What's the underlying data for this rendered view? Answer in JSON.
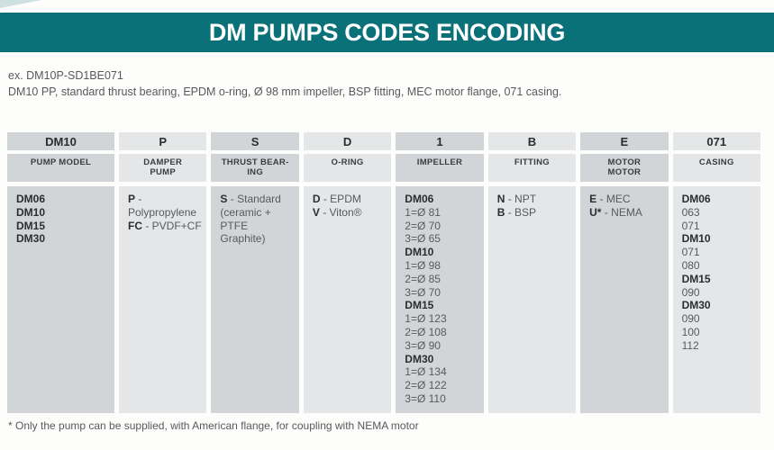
{
  "page": {
    "title": "DM PUMPS CODES ENCODING",
    "example_code": "ex. DM10P-SD1BE071",
    "example_description": "DM10 PP, standard thrust bearing, EPDM o-ring, Ø 98 mm impeller, BSP fitting, MEC motor flange, 071 casing.",
    "footnote": "* Only the pump can be supplied, with American flange, for coupling with NEMA motor"
  },
  "colors": {
    "banner_teal": "#0b7179",
    "column_dark": "#d2d5d7",
    "column_light": "#e4e6e7",
    "text_gray": "#58595b"
  },
  "table": {
    "columns": [
      {
        "code": "DM10",
        "label": "PUMP MODEL",
        "shade": "dark",
        "lines": [
          [
            {
              "text": "DM06",
              "bold": true
            }
          ],
          [
            {
              "text": "DM10",
              "bold": true
            }
          ],
          [
            {
              "text": "DM15",
              "bold": true
            }
          ],
          [
            {
              "text": "DM30",
              "bold": true
            }
          ]
        ]
      },
      {
        "code": "P",
        "label": "DAMPER\nPUMP",
        "shade": "light",
        "lines": [
          [
            {
              "text": "P",
              "bold": true
            },
            {
              "text": " - Polypropylene"
            }
          ],
          [
            {
              "text": "FC",
              "bold": true
            },
            {
              "text": " - PVDF+CF"
            }
          ]
        ]
      },
      {
        "code": "S",
        "label": "THRUST BEAR-\nING",
        "shade": "dark",
        "lines": [
          [
            {
              "text": "S",
              "bold": true
            },
            {
              "text": " - Standard"
            }
          ],
          [
            {
              "text": "(ceramic +"
            }
          ],
          [
            {
              "text": "PTFE Graphite)"
            }
          ]
        ]
      },
      {
        "code": "D",
        "label": "O-RING",
        "shade": "light",
        "lines": [
          [
            {
              "text": "D",
              "bold": true
            },
            {
              "text": " - EPDM"
            }
          ],
          [
            {
              "text": "V",
              "bold": true
            },
            {
              "text": " - Viton®"
            }
          ]
        ]
      },
      {
        "code": "1",
        "label": "IMPELLER",
        "shade": "dark",
        "lines": [
          [
            {
              "text": "DM06",
              "bold": true
            }
          ],
          [
            {
              "text": "1=Ø 81"
            }
          ],
          [
            {
              "text": "2=Ø 70"
            }
          ],
          [
            {
              "text": "3=Ø 65"
            }
          ],
          [
            {
              "text": "DM10",
              "bold": true
            }
          ],
          [
            {
              "text": "1=Ø 98"
            }
          ],
          [
            {
              "text": "2=Ø 85"
            }
          ],
          [
            {
              "text": "3=Ø 70"
            }
          ],
          [
            {
              "text": "DM15",
              "bold": true
            }
          ],
          [
            {
              "text": "1=Ø 123"
            }
          ],
          [
            {
              "text": "2=Ø 108"
            }
          ],
          [
            {
              "text": "3=Ø 90"
            }
          ],
          [
            {
              "text": "DM30",
              "bold": true
            }
          ],
          [
            {
              "text": "1=Ø 134"
            }
          ],
          [
            {
              "text": "2=Ø 122"
            }
          ],
          [
            {
              "text": "3=Ø 110"
            }
          ]
        ]
      },
      {
        "code": "B",
        "label": "FITTING",
        "shade": "light",
        "lines": [
          [
            {
              "text": "N",
              "bold": true
            },
            {
              "text": " - NPT"
            }
          ],
          [
            {
              "text": "B",
              "bold": true
            },
            {
              "text": " - BSP"
            }
          ]
        ]
      },
      {
        "code": "E",
        "label": "MOTOR\nMOTOR",
        "shade": "dark",
        "lines": [
          [
            {
              "text": "E",
              "bold": true
            },
            {
              "text": " - MEC"
            }
          ],
          [
            {
              "text": "U*",
              "bold": true
            },
            {
              "text": " - NEMA"
            }
          ]
        ]
      },
      {
        "code": "071",
        "label": "CASING",
        "shade": "light",
        "lines": [
          [
            {
              "text": "DM06",
              "bold": true
            }
          ],
          [
            {
              "text": "063"
            }
          ],
          [
            {
              "text": "071"
            }
          ],
          [
            {
              "text": "DM10",
              "bold": true
            }
          ],
          [
            {
              "text": "071"
            }
          ],
          [
            {
              "text": "080"
            }
          ],
          [
            {
              "text": "DM15",
              "bold": true
            }
          ],
          [
            {
              "text": "090"
            }
          ],
          [
            {
              "text": "DM30",
              "bold": true
            }
          ],
          [
            {
              "text": "090"
            }
          ],
          [
            {
              "text": "100"
            }
          ],
          [
            {
              "text": "112"
            }
          ]
        ]
      }
    ]
  }
}
